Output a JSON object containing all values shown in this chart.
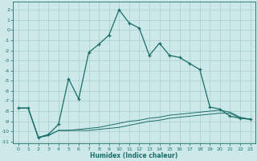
{
  "xlabel": "Humidex (Indice chaleur)",
  "bg_color": "#cce8e8",
  "line_color": "#1a6e6a",
  "grid_color": "#aacece",
  "xlim": [
    -0.5,
    23.5
  ],
  "ylim": [
    -11.2,
    2.8
  ],
  "xticks": [
    0,
    1,
    2,
    3,
    4,
    5,
    6,
    7,
    8,
    9,
    10,
    11,
    12,
    13,
    14,
    15,
    16,
    17,
    18,
    19,
    20,
    21,
    22,
    23
  ],
  "yticks": [
    2,
    1,
    0,
    -1,
    -2,
    -3,
    -4,
    -5,
    -6,
    -7,
    -8,
    -9,
    -10,
    -11
  ],
  "main_line_x": [
    0,
    1,
    2,
    3,
    4,
    5,
    6,
    7,
    8,
    9,
    10,
    11,
    12,
    13,
    14,
    15,
    16,
    17,
    18,
    19,
    20,
    21,
    22,
    23
  ],
  "main_line_y": [
    -7.7,
    -7.7,
    -10.6,
    -10.3,
    -9.3,
    -4.8,
    -6.8,
    -2.2,
    -1.4,
    -0.5,
    2.0,
    0.7,
    0.2,
    -2.5,
    -1.3,
    -2.5,
    -2.7,
    -3.3,
    -3.9,
    -7.6,
    -7.8,
    -8.5,
    -8.7,
    -8.8
  ],
  "line2_x": [
    0,
    1,
    2,
    3,
    4,
    5,
    6,
    7,
    8,
    9,
    10,
    11,
    12,
    13,
    14,
    15,
    16,
    17,
    18,
    19,
    20,
    21,
    22,
    23
  ],
  "line2_y": [
    -7.7,
    -7.7,
    -10.6,
    -10.4,
    -9.9,
    -9.9,
    -9.9,
    -9.9,
    -9.8,
    -9.7,
    -9.6,
    -9.4,
    -9.2,
    -9.0,
    -8.9,
    -8.7,
    -8.6,
    -8.5,
    -8.4,
    -8.3,
    -8.2,
    -8.2,
    -8.7,
    -8.8
  ],
  "line3_x": [
    0,
    1,
    2,
    3,
    4,
    5,
    6,
    7,
    8,
    9,
    10,
    11,
    12,
    13,
    14,
    15,
    16,
    17,
    18,
    19,
    20,
    21,
    22,
    23
  ],
  "line3_y": [
    -7.7,
    -7.7,
    -10.6,
    -10.4,
    -9.9,
    -9.9,
    -9.8,
    -9.7,
    -9.6,
    -9.4,
    -9.2,
    -9.0,
    -8.9,
    -8.7,
    -8.6,
    -8.4,
    -8.3,
    -8.2,
    -8.1,
    -8.0,
    -7.9,
    -8.1,
    -8.6,
    -8.8
  ]
}
